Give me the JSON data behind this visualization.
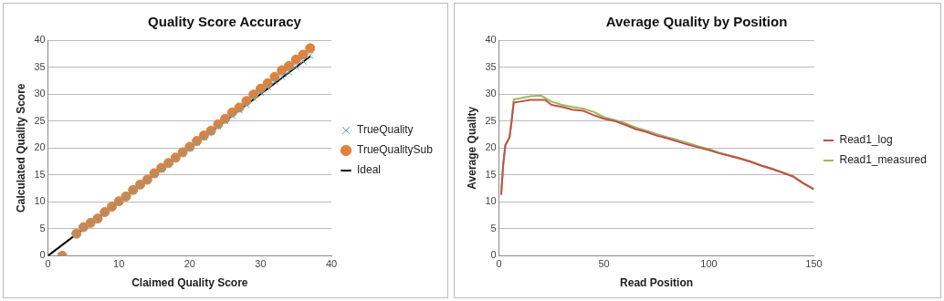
{
  "chart_data": [
    {
      "type": "scatter",
      "title": "Quality Score Accuracy",
      "xlabel": "Claimed Quality Score",
      "ylabel": "Calculated Quality Score",
      "xlim": [
        0,
        40
      ],
      "xticks": [
        0,
        10,
        20,
        30,
        40
      ],
      "ylim": [
        0,
        40
      ],
      "yticks": [
        0,
        5,
        10,
        15,
        20,
        25,
        30,
        35,
        40
      ],
      "grid": "y",
      "legend": "right",
      "series": [
        {
          "name": "TrueQuality",
          "color": "#4bacc6",
          "marker": "cross",
          "x": [
            2,
            4,
            5,
            6,
            7,
            8,
            9,
            10,
            11,
            12,
            13,
            14,
            15,
            16,
            17,
            18,
            19,
            20,
            21,
            22,
            23,
            24,
            25,
            26,
            27,
            28,
            29,
            30,
            31,
            32,
            33,
            34,
            35,
            36,
            37
          ],
          "values": [
            0,
            4,
            5.2,
            6,
            6.8,
            8,
            9,
            10,
            11,
            12,
            13,
            14,
            15,
            16,
            17,
            18,
            19,
            20,
            21,
            22,
            23,
            24,
            25,
            26,
            27,
            28,
            29.3,
            30.3,
            31.3,
            32.3,
            33.2,
            34.1,
            35.1,
            36.1,
            37.2
          ]
        },
        {
          "name": "TrueQualitySub",
          "color": "#e0823d",
          "marker": "circle",
          "x": [
            2,
            4,
            5,
            6,
            7,
            8,
            9,
            10,
            11,
            12,
            13,
            14,
            15,
            16,
            17,
            18,
            19,
            20,
            21,
            22,
            23,
            24,
            25,
            26,
            27,
            28,
            29,
            30,
            31,
            32,
            33,
            34,
            35,
            36,
            37
          ],
          "values": [
            0,
            4.1,
            5.3,
            6.1,
            6.9,
            8.1,
            9.1,
            10.1,
            11,
            12.2,
            13.2,
            14.1,
            15.3,
            16.3,
            17.2,
            18.2,
            19.2,
            20.2,
            21.3,
            22.3,
            23.2,
            24.4,
            25.4,
            26.6,
            27.5,
            28.7,
            29.9,
            31,
            32,
            33.2,
            34.4,
            35.2,
            36.4,
            37.3,
            38.5
          ]
        },
        {
          "name": "Ideal",
          "type": "line",
          "color": "#000000",
          "marker": "none",
          "x": [
            0,
            37
          ],
          "values": [
            0,
            37
          ]
        }
      ]
    },
    {
      "type": "line",
      "title": "Average Quality by Position",
      "xlabel": "Read Position",
      "ylabel": "Average Quality",
      "xlim": [
        0,
        150
      ],
      "xticks": [
        0,
        50,
        100,
        150
      ],
      "ylim": [
        0,
        40
      ],
      "yticks": [
        0,
        5,
        10,
        15,
        20,
        25,
        30,
        35,
        40
      ],
      "grid": "y",
      "legend": "right",
      "marker": "none",
      "series": [
        {
          "name": "Read1_log",
          "color": "#c0504d",
          "x": [
            1,
            2,
            3,
            5,
            6,
            7,
            10,
            15,
            20,
            22,
            25,
            30,
            35,
            40,
            45,
            50,
            55,
            60,
            65,
            70,
            75,
            80,
            85,
            90,
            95,
            100,
            105,
            110,
            115,
            120,
            125,
            130,
            135,
            140,
            145,
            150
          ],
          "values": [
            11.3,
            17,
            20.5,
            22,
            25,
            28.4,
            28.6,
            28.9,
            28.9,
            28.9,
            28,
            27.6,
            27.1,
            26.9,
            26.1,
            25.4,
            25,
            24.3,
            23.5,
            23,
            22.3,
            21.8,
            21.2,
            20.6,
            20.1,
            19.6,
            19,
            18.5,
            18,
            17.4,
            16.7,
            16.1,
            15.4,
            14.7,
            13.4,
            12.3
          ]
        },
        {
          "name": "Read1_measured",
          "color": "#9bbb59",
          "x": [
            1,
            2,
            3,
            5,
            6,
            7,
            10,
            15,
            20,
            22,
            25,
            30,
            35,
            40,
            45,
            50,
            55,
            60,
            65,
            70,
            75,
            80,
            85,
            90,
            95,
            100,
            105,
            110,
            115,
            120,
            125,
            130,
            135,
            140,
            145,
            150
          ],
          "values": [
            11.3,
            17,
            20.5,
            22,
            25,
            29,
            29.2,
            29.6,
            29.7,
            29.3,
            28.6,
            28,
            27.6,
            27.3,
            26.7,
            25.7,
            25.2,
            24.6,
            23.8,
            23.2,
            22.6,
            22,
            21.5,
            20.9,
            20.3,
            19.8,
            19.1,
            18.6,
            18.1,
            17.5,
            16.8,
            16.2,
            15.5,
            14.8,
            13.5,
            12.4
          ]
        }
      ]
    }
  ]
}
